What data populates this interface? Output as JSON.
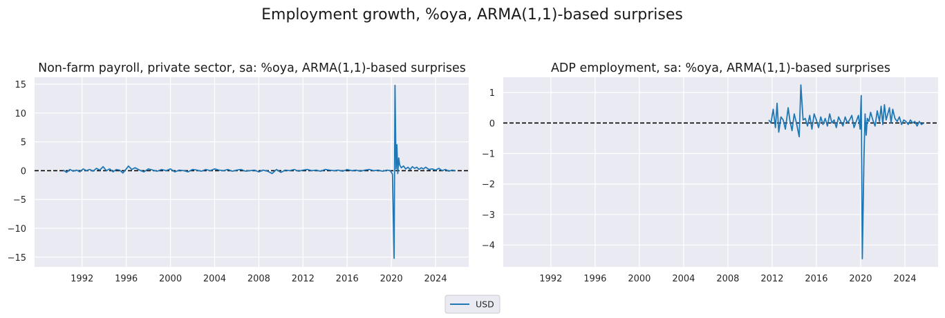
{
  "figure": {
    "suptitle": "Employment growth, %oya, ARMA(1,1)-based surprises",
    "legend": {
      "entries": [
        {
          "label": "USD",
          "color": "#1f77b4"
        }
      ]
    }
  },
  "chart_data": [
    {
      "type": "line",
      "title": "Non-farm payroll, private sector, sa: %oya, ARMA(1,1)-based surprises",
      "xlabel": "",
      "ylabel": "",
      "xlim": [
        1987.7,
        2027.0
      ],
      "ylim": [
        -16.7,
        16.2
      ],
      "xticks": [
        "1992",
        "1996",
        "2000",
        "2004",
        "2008",
        "2012",
        "2016",
        "2020",
        "2024"
      ],
      "yticks": [
        "15",
        "10",
        "5",
        "0",
        "−5",
        "−10",
        "−15"
      ],
      "ytick_values": [
        15,
        10,
        5,
        0,
        -5,
        -10,
        -15
      ],
      "grid": true,
      "reference_line": {
        "y": 0,
        "style": "dashed",
        "color": "#000000"
      },
      "series": [
        {
          "name": "USD",
          "color": "#1f77b4",
          "x": [
            1990.3,
            1990.6,
            1990.9,
            1991.2,
            1991.5,
            1991.8,
            1992.1,
            1992.4,
            1992.7,
            1993.0,
            1993.3,
            1993.6,
            1993.9,
            1994.2,
            1994.5,
            1994.8,
            1995.1,
            1995.4,
            1995.7,
            1996.0,
            1996.2,
            1996.5,
            1996.8,
            1997.2,
            1997.6,
            1998.0,
            1998.4,
            1998.8,
            1999.2,
            1999.6,
            2000.0,
            2000.4,
            2000.8,
            2001.2,
            2001.6,
            2002.0,
            2002.4,
            2002.8,
            2003.2,
            2003.6,
            2004.0,
            2004.4,
            2004.8,
            2005.2,
            2005.6,
            2006.0,
            2006.4,
            2006.8,
            2007.2,
            2007.6,
            2008.0,
            2008.4,
            2008.8,
            2009.2,
            2009.6,
            2010.0,
            2010.4,
            2010.8,
            2011.2,
            2011.6,
            2012.0,
            2012.4,
            2012.8,
            2013.2,
            2013.6,
            2014.0,
            2014.4,
            2014.8,
            2015.2,
            2015.6,
            2016.0,
            2016.4,
            2016.8,
            2017.2,
            2017.6,
            2018.0,
            2018.4,
            2018.8,
            2019.2,
            2019.6,
            2019.9,
            2020.1,
            2020.25,
            2020.33,
            2020.42,
            2020.5,
            2020.58,
            2020.67,
            2020.75,
            2020.9,
            2021.1,
            2021.3,
            2021.5,
            2021.7,
            2021.9,
            2022.1,
            2022.3,
            2022.5,
            2022.7,
            2022.9,
            2023.1,
            2023.4,
            2023.7,
            2024.0,
            2024.3,
            2024.6,
            2024.9,
            2025.2,
            2025.5,
            2025.8
          ],
          "y": [
            0.1,
            -0.3,
            0.2,
            -0.1,
            0.1,
            -0.2,
            0.3,
            0.0,
            0.2,
            -0.1,
            0.4,
            0.1,
            0.7,
            0.0,
            0.3,
            -0.2,
            0.2,
            0.1,
            -0.4,
            0.3,
            0.8,
            0.2,
            0.5,
            0.1,
            -0.2,
            0.3,
            0.1,
            -0.1,
            0.2,
            0.0,
            0.3,
            -0.2,
            0.1,
            0.0,
            -0.2,
            0.2,
            0.1,
            -0.1,
            0.2,
            0.0,
            0.3,
            0.1,
            0.0,
            0.2,
            -0.1,
            0.1,
            0.2,
            -0.1,
            0.0,
            0.1,
            -0.2,
            0.1,
            -0.1,
            -0.5,
            0.2,
            -0.3,
            0.1,
            0.0,
            0.2,
            -0.1,
            0.1,
            0.2,
            0.0,
            0.1,
            -0.1,
            0.2,
            0.1,
            0.0,
            0.1,
            -0.1,
            0.2,
            0.0,
            0.1,
            -0.1,
            0.1,
            0.2,
            0.0,
            0.1,
            -0.1,
            0.1,
            0.0,
            -0.6,
            -15.2,
            14.8,
            0.3,
            4.5,
            -0.5,
            2.2,
            1.0,
            0.5,
            0.8,
            0.3,
            0.6,
            0.2,
            0.7,
            0.4,
            0.6,
            0.2,
            0.5,
            0.3,
            0.6,
            0.2,
            0.3,
            0.1,
            0.4,
            0.0,
            0.2,
            -0.1,
            0.1,
            0.0
          ]
        }
      ]
    },
    {
      "type": "line",
      "title": "ADP employment, sa: %oya, ARMA(1,1)-based surprises",
      "xlabel": "",
      "ylabel": "",
      "xlim": [
        1987.7,
        2027.0
      ],
      "ylim": [
        -4.72,
        1.5
      ],
      "xticks": [
        "1992",
        "1996",
        "2000",
        "2004",
        "2008",
        "2012",
        "2016",
        "2020",
        "2024"
      ],
      "yticks": [
        "1",
        "0",
        "−1",
        "−2",
        "−3",
        "−4"
      ],
      "ytick_values": [
        1,
        0,
        -1,
        -2,
        -3,
        -4
      ],
      "grid": true,
      "reference_line": {
        "y": 0,
        "style": "dashed",
        "color": "#000000"
      },
      "series": [
        {
          "name": "USD",
          "color": "#1f77b4",
          "x": [
            2011.7,
            2011.9,
            2012.1,
            2012.3,
            2012.45,
            2012.6,
            2012.8,
            2013.0,
            2013.2,
            2013.45,
            2013.6,
            2013.8,
            2014.0,
            2014.2,
            2014.45,
            2014.6,
            2014.8,
            2015.0,
            2015.2,
            2015.4,
            2015.6,
            2015.8,
            2016.0,
            2016.2,
            2016.4,
            2016.6,
            2016.8,
            2017.0,
            2017.2,
            2017.4,
            2017.6,
            2017.8,
            2018.0,
            2018.2,
            2018.4,
            2018.6,
            2018.8,
            2019.0,
            2019.2,
            2019.4,
            2019.6,
            2019.8,
            2019.95,
            2020.05,
            2020.15,
            2020.3,
            2020.4,
            2020.5,
            2020.6,
            2020.75,
            2020.9,
            2021.1,
            2021.3,
            2021.5,
            2021.7,
            2021.85,
            2022.0,
            2022.15,
            2022.3,
            2022.45,
            2022.6,
            2022.75,
            2022.9,
            2023.1,
            2023.3,
            2023.5,
            2023.7,
            2023.9,
            2024.1,
            2024.3,
            2024.5,
            2024.7,
            2024.9,
            2025.1,
            2025.3,
            2025.5,
            2025.7
          ],
          "y": [
            0.1,
            0.0,
            0.45,
            -0.15,
            0.65,
            -0.3,
            0.2,
            0.1,
            -0.2,
            0.5,
            0.1,
            -0.25,
            0.3,
            0.0,
            -0.45,
            1.25,
            0.1,
            0.15,
            -0.1,
            0.25,
            -0.2,
            0.3,
            0.1,
            -0.15,
            0.2,
            -0.05,
            0.15,
            -0.1,
            0.3,
            0.0,
            0.1,
            -0.15,
            0.2,
            0.05,
            -0.1,
            0.2,
            0.0,
            0.1,
            0.25,
            -0.15,
            0.05,
            0.25,
            -0.2,
            0.9,
            -4.45,
            -1.1,
            0.3,
            -0.4,
            0.15,
            0.05,
            0.35,
            0.1,
            -0.1,
            0.4,
            0.05,
            0.55,
            -0.05,
            0.6,
            0.1,
            0.3,
            0.5,
            0.0,
            0.45,
            0.15,
            0.05,
            0.2,
            -0.05,
            0.1,
            0.05,
            -0.05,
            0.1,
            0.0,
            0.05,
            -0.1,
            0.05,
            -0.05,
            0.0
          ]
        }
      ]
    }
  ]
}
